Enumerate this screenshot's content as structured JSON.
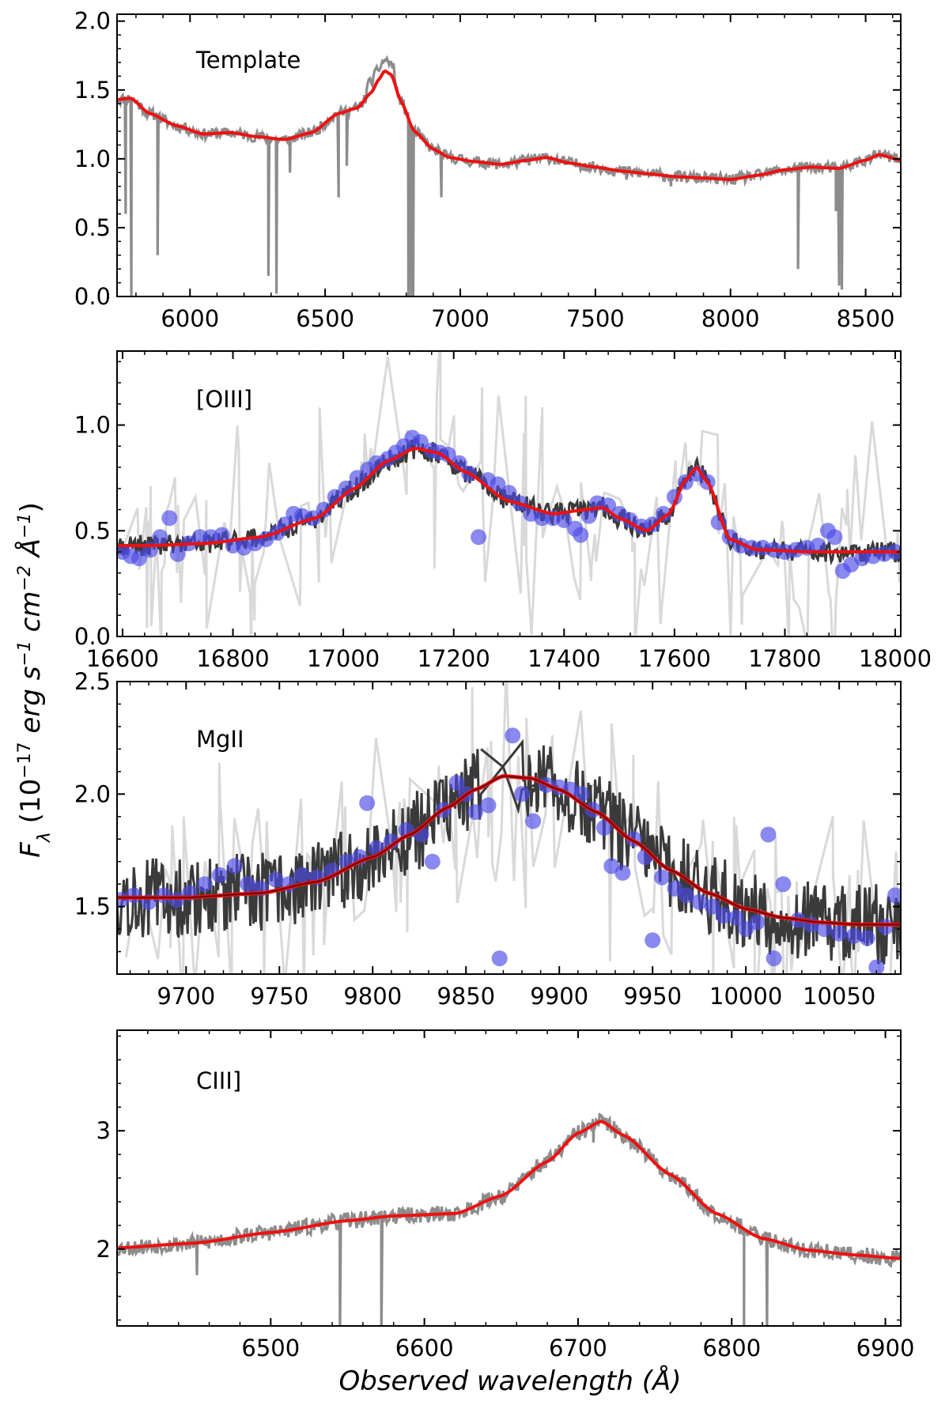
{
  "figure": {
    "ylabel_text": "(10",
    "ylabel_exp": "−17",
    "ylabel_units": "erg s",
    "ylabel_exp2": "−1",
    "ylabel_cm": "cm",
    "ylabel_exp3": "−2",
    "ylabel_ang": "Å",
    "ylabel_exp4": "−1",
    "ylabel_close": ")",
    "xlabel": "Observed wavelength (Å)"
  },
  "colors": {
    "template_data": "#8c8c8c",
    "light_data": "#d9d9d9",
    "dark_data": "#3a3a3a",
    "points": "#4a4ae6",
    "fit": "#ee1111",
    "fit_dark": "#6b0000"
  },
  "chart_data": [
    {
      "type": "line",
      "label": "Template",
      "xlim": [
        5730,
        8630
      ],
      "ylim": [
        0.0,
        2.05
      ],
      "xticks": [
        6000,
        6500,
        7000,
        7500,
        8000,
        8500
      ],
      "yticks": [
        0.0,
        0.5,
        1.0,
        1.5,
        2.0
      ],
      "ytick_labels": [
        "0.0",
        "0.5",
        "1.0",
        "1.5",
        "2.0"
      ],
      "model": {
        "x": [
          5730,
          5780,
          5850,
          5950,
          6050,
          6150,
          6250,
          6350,
          6450,
          6550,
          6620,
          6670,
          6700,
          6720,
          6745,
          6780,
          6830,
          6900,
          6960,
          7050,
          7150,
          7250,
          7320,
          7400,
          7500,
          7600,
          7700,
          7800,
          7900,
          8000,
          8100,
          8200,
          8300,
          8400,
          8500,
          8550,
          8630
        ],
        "y": [
          1.43,
          1.44,
          1.33,
          1.24,
          1.18,
          1.19,
          1.16,
          1.14,
          1.19,
          1.33,
          1.37,
          1.48,
          1.58,
          1.64,
          1.61,
          1.42,
          1.2,
          1.07,
          1.01,
          0.98,
          0.96,
          0.99,
          1.01,
          0.97,
          0.94,
          0.91,
          0.89,
          0.87,
          0.86,
          0.85,
          0.88,
          0.92,
          0.94,
          0.93,
          0.99,
          1.03,
          0.99
        ]
      },
      "absorptions": [
        {
          "x": 5762,
          "depth": 0.6
        },
        {
          "x": 5783,
          "depth": 0.0
        },
        {
          "x": 5880,
          "depth": 0.3
        },
        {
          "x": 6290,
          "depth": 0.15
        },
        {
          "x": 6320,
          "depth": 0.02
        },
        {
          "x": 6370,
          "depth": 0.9
        },
        {
          "x": 6550,
          "depth": 0.72
        },
        {
          "x": 6580,
          "depth": 0.95
        },
        {
          "x": 6808,
          "depth": 0.0
        },
        {
          "x": 6818,
          "depth": 0.0
        },
        {
          "x": 6826,
          "depth": 0.0
        },
        {
          "x": 6930,
          "depth": 0.72
        },
        {
          "x": 7615,
          "depth": 0.85
        },
        {
          "x": 7780,
          "depth": 0.8
        },
        {
          "x": 8250,
          "depth": 0.2
        },
        {
          "x": 8390,
          "depth": 0.62
        },
        {
          "x": 8402,
          "depth": 0.08
        },
        {
          "x": 8412,
          "depth": 0.05
        }
      ],
      "seed": 11
    },
    {
      "type": "line",
      "label": "[OIII]",
      "xlim": [
        16590,
        18010
      ],
      "ylim": [
        0.0,
        1.35
      ],
      "xticks": [
        16600,
        16800,
        17000,
        17200,
        17400,
        17600,
        17800,
        18000
      ],
      "yticks": [
        0.0,
        0.5,
        1.0
      ],
      "ytick_labels": [
        "0.0",
        "0.5",
        "1.0"
      ],
      "model": {
        "x": [
          16590,
          16650,
          16750,
          16850,
          16950,
          17020,
          17080,
          17130,
          17170,
          17220,
          17300,
          17380,
          17440,
          17470,
          17500,
          17550,
          17590,
          17620,
          17640,
          17660,
          17700,
          17750,
          17850,
          17950,
          18010
        ],
        "y": [
          0.43,
          0.43,
          0.44,
          0.47,
          0.56,
          0.7,
          0.83,
          0.89,
          0.87,
          0.78,
          0.64,
          0.58,
          0.6,
          0.61,
          0.56,
          0.5,
          0.58,
          0.74,
          0.8,
          0.73,
          0.46,
          0.41,
          0.4,
          0.4,
          0.4
        ]
      },
      "points": [
        [
          16600,
          0.4
        ],
        [
          16615,
          0.38
        ],
        [
          16630,
          0.37
        ],
        [
          16650,
          0.41
        ],
        [
          16668,
          0.47
        ],
        [
          16685,
          0.56
        ],
        [
          16700,
          0.39
        ],
        [
          16720,
          0.44
        ],
        [
          16740,
          0.47
        ],
        [
          16760,
          0.47
        ],
        [
          16780,
          0.48
        ],
        [
          16800,
          0.43
        ],
        [
          16820,
          0.42
        ],
        [
          16840,
          0.44
        ],
        [
          16860,
          0.46
        ],
        [
          16880,
          0.49
        ],
        [
          16895,
          0.53
        ],
        [
          16910,
          0.58
        ],
        [
          16925,
          0.57
        ],
        [
          16945,
          0.56
        ],
        [
          16965,
          0.6
        ],
        [
          16985,
          0.66
        ],
        [
          17005,
          0.7
        ],
        [
          17025,
          0.75
        ],
        [
          17045,
          0.79
        ],
        [
          17060,
          0.82
        ],
        [
          17080,
          0.84
        ],
        [
          17095,
          0.87
        ],
        [
          17110,
          0.9
        ],
        [
          17125,
          0.94
        ],
        [
          17140,
          0.92
        ],
        [
          17160,
          0.88
        ],
        [
          17175,
          0.87
        ],
        [
          17190,
          0.86
        ],
        [
          17210,
          0.82
        ],
        [
          17228,
          0.77
        ],
        [
          17245,
          0.47
        ],
        [
          17262,
          0.74
        ],
        [
          17280,
          0.72
        ],
        [
          17300,
          0.68
        ],
        [
          17320,
          0.63
        ],
        [
          17340,
          0.58
        ],
        [
          17360,
          0.56
        ],
        [
          17380,
          0.56
        ],
        [
          17400,
          0.55
        ],
        [
          17420,
          0.51
        ],
        [
          17430,
          0.48
        ],
        [
          17445,
          0.57
        ],
        [
          17460,
          0.63
        ],
        [
          17480,
          0.62
        ],
        [
          17500,
          0.58
        ],
        [
          17520,
          0.55
        ],
        [
          17540,
          0.52
        ],
        [
          17560,
          0.53
        ],
        [
          17580,
          0.58
        ],
        [
          17600,
          0.66
        ],
        [
          17620,
          0.73
        ],
        [
          17640,
          0.77
        ],
        [
          17660,
          0.73
        ],
        [
          17680,
          0.54
        ],
        [
          17700,
          0.47
        ],
        [
          17720,
          0.43
        ],
        [
          17740,
          0.42
        ],
        [
          17760,
          0.42
        ],
        [
          17780,
          0.41
        ],
        [
          17800,
          0.4
        ],
        [
          17820,
          0.41
        ],
        [
          17840,
          0.42
        ],
        [
          17860,
          0.43
        ],
        [
          17878,
          0.5
        ],
        [
          17890,
          0.47
        ],
        [
          17905,
          0.31
        ],
        [
          17920,
          0.34
        ],
        [
          17940,
          0.37
        ],
        [
          17960,
          0.38
        ],
        [
          17980,
          0.39
        ],
        [
          18000,
          0.4
        ]
      ],
      "seed": 23
    },
    {
      "type": "line",
      "label": "MgII",
      "xlim": [
        9663,
        10083
      ],
      "ylim": [
        1.2,
        2.5
      ],
      "xticks": [
        9700,
        9750,
        9800,
        9850,
        9900,
        9950,
        10000,
        10050
      ],
      "yticks": [
        1.5,
        2.0,
        2.5
      ],
      "ytick_labels": [
        "1.5",
        "2.0",
        "2.5"
      ],
      "model": {
        "x": [
          9663,
          9700,
          9740,
          9770,
          9800,
          9820,
          9840,
          9855,
          9870,
          9885,
          9900,
          9920,
          9940,
          9960,
          9980,
          10000,
          10020,
          10040,
          10060,
          10083
        ],
        "y": [
          1.54,
          1.54,
          1.56,
          1.61,
          1.72,
          1.82,
          1.94,
          2.02,
          2.08,
          2.07,
          2.02,
          1.92,
          1.79,
          1.66,
          1.56,
          1.49,
          1.45,
          1.43,
          1.42,
          1.42
        ]
      },
      "gap": [
        9858,
        9880
      ],
      "points": [
        [
          9665,
          1.53
        ],
        [
          9672,
          1.55
        ],
        [
          9680,
          1.52
        ],
        [
          9688,
          1.55
        ],
        [
          9695,
          1.53
        ],
        [
          9702,
          1.56
        ],
        [
          9710,
          1.6
        ],
        [
          9718,
          1.64
        ],
        [
          9726,
          1.68
        ],
        [
          9733,
          1.6
        ],
        [
          9740,
          1.58
        ],
        [
          9748,
          1.62
        ],
        [
          9755,
          1.6
        ],
        [
          9762,
          1.64
        ],
        [
          9770,
          1.63
        ],
        [
          9778,
          1.66
        ],
        [
          9786,
          1.7
        ],
        [
          9793,
          1.72
        ],
        [
          9797,
          1.96
        ],
        [
          9802,
          1.76
        ],
        [
          9810,
          1.79
        ],
        [
          9818,
          1.84
        ],
        [
          9826,
          1.82
        ],
        [
          9832,
          1.7
        ],
        [
          9838,
          1.93
        ],
        [
          9845,
          2.05
        ],
        [
          9850,
          2.0
        ],
        [
          9855,
          1.92
        ],
        [
          9862,
          1.95
        ],
        [
          9868,
          1.27
        ],
        [
          9875,
          2.26
        ],
        [
          9880,
          2.0
        ],
        [
          9886,
          1.88
        ],
        [
          9893,
          2.04
        ],
        [
          9900,
          2.03
        ],
        [
          9906,
          2.02
        ],
        [
          9912,
          2.0
        ],
        [
          9918,
          1.93
        ],
        [
          9924,
          1.85
        ],
        [
          9928,
          1.68
        ],
        [
          9934,
          1.65
        ],
        [
          9940,
          1.8
        ],
        [
          9946,
          1.72
        ],
        [
          9950,
          1.35
        ],
        [
          9955,
          1.63
        ],
        [
          9962,
          1.58
        ],
        [
          9968,
          1.55
        ],
        [
          9975,
          1.52
        ],
        [
          9982,
          1.5
        ],
        [
          9988,
          1.46
        ],
        [
          9995,
          1.45
        ],
        [
          10000,
          1.4
        ],
        [
          10006,
          1.43
        ],
        [
          10012,
          1.82
        ],
        [
          10015,
          1.27
        ],
        [
          10020,
          1.6
        ],
        [
          10028,
          1.44
        ],
        [
          10035,
          1.42
        ],
        [
          10042,
          1.4
        ],
        [
          10050,
          1.38
        ],
        [
          10058,
          1.37
        ],
        [
          10065,
          1.36
        ],
        [
          10070,
          1.23
        ],
        [
          10075,
          1.41
        ],
        [
          10080,
          1.55
        ]
      ],
      "seed": 37
    },
    {
      "type": "line",
      "label": "CIII]",
      "xlim": [
        6400,
        6910
      ],
      "ylim": [
        1.35,
        3.85
      ],
      "xticks": [
        6500,
        6600,
        6700,
        6800,
        6900
      ],
      "yticks": [
        2,
        3
      ],
      "ytick_labels": [
        "2",
        "3"
      ],
      "model": {
        "x": [
          6400,
          6450,
          6500,
          6550,
          6580,
          6620,
          6650,
          6680,
          6700,
          6715,
          6730,
          6760,
          6790,
          6820,
          6850,
          6880,
          6910
        ],
        "y": [
          2.01,
          2.05,
          2.14,
          2.24,
          2.28,
          2.3,
          2.45,
          2.74,
          2.98,
          3.08,
          2.96,
          2.63,
          2.3,
          2.09,
          1.99,
          1.95,
          1.92
        ]
      },
      "absorptions": [
        {
          "x": 6452,
          "depth": 1.78
        },
        {
          "x": 6545,
          "depth": 1.2
        },
        {
          "x": 6572,
          "depth": 1.2
        },
        {
          "x": 6710,
          "depth": 2.9
        },
        {
          "x": 6808,
          "depth": 1.3
        },
        {
          "x": 6823,
          "depth": 1.3
        }
      ],
      "seed": 53
    }
  ]
}
